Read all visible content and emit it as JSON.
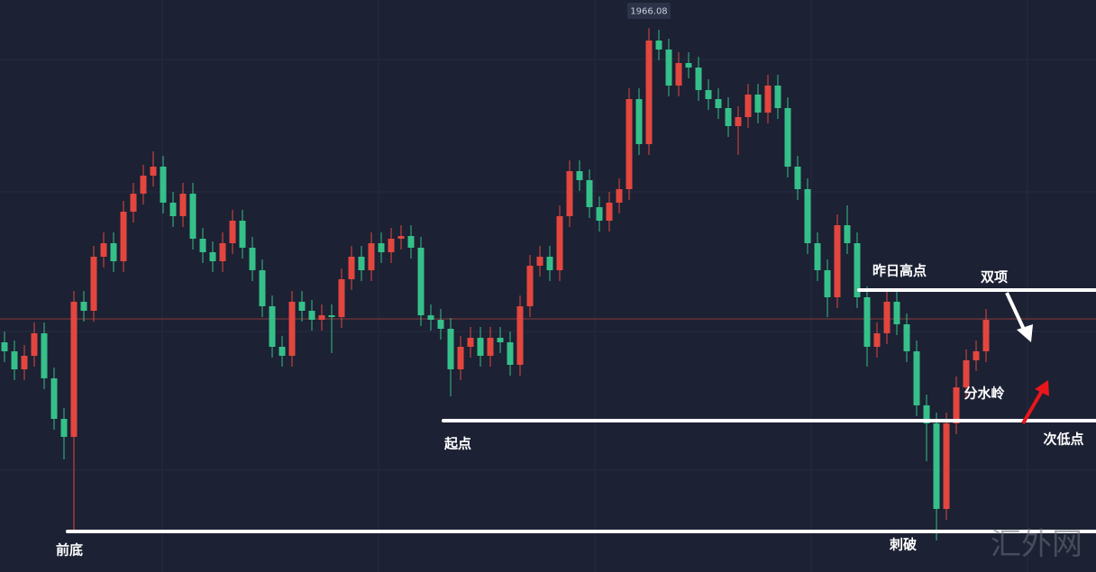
{
  "chart_data": {
    "type": "candlestick",
    "high_marker": 1966.08,
    "ylim": [
      1905.7,
      1969.2
    ],
    "up_color": "#e2463f",
    "down_color": "#35c08a",
    "price_line": 1933.8,
    "price_line_color": "#8a3a3a",
    "levels": [
      1937.0,
      1922.5,
      1910.2
    ],
    "level_color": "#ffffff",
    "annotations": [
      "昨日高点",
      "双项",
      "分水岭",
      "起点",
      "次低点",
      "前底",
      "刺破"
    ],
    "watermark": "汇外网",
    "values": [
      [
        1931.2,
        1932.4,
        1929.0,
        1930.2
      ],
      [
        1930.2,
        1931.4,
        1927.0,
        1928.2
      ],
      [
        1928.2,
        1930.9,
        1927.0,
        1929.7
      ],
      [
        1929.7,
        1933.4,
        1928.5,
        1932.2
      ],
      [
        1932.2,
        1933.4,
        1926.0,
        1927.2
      ],
      [
        1927.2,
        1928.4,
        1921.5,
        1922.7
      ],
      [
        1922.7,
        1923.9,
        1918.2,
        1920.7
      ],
      [
        1920.7,
        1936.9,
        1910.2,
        1935.7
      ],
      [
        1935.7,
        1936.9,
        1933.5,
        1934.7
      ],
      [
        1934.7,
        1941.9,
        1933.5,
        1940.7
      ],
      [
        1940.7,
        1943.4,
        1939.5,
        1942.2
      ],
      [
        1942.2,
        1943.4,
        1939.0,
        1940.2
      ],
      [
        1940.2,
        1946.9,
        1939.0,
        1945.7
      ],
      [
        1945.7,
        1948.9,
        1944.5,
        1947.7
      ],
      [
        1947.7,
        1950.9,
        1946.5,
        1949.7
      ],
      [
        1949.7,
        1952.4,
        1948.5,
        1950.7
      ],
      [
        1950.7,
        1951.9,
        1945.5,
        1946.7
      ],
      [
        1946.7,
        1947.9,
        1944.0,
        1945.2
      ],
      [
        1945.2,
        1948.9,
        1944.0,
        1947.7
      ],
      [
        1947.7,
        1948.9,
        1941.5,
        1942.7
      ],
      [
        1942.7,
        1943.9,
        1940.0,
        1941.2
      ],
      [
        1941.2,
        1942.4,
        1939.0,
        1940.2
      ],
      [
        1940.2,
        1943.4,
        1939.0,
        1942.2
      ],
      [
        1942.2,
        1945.9,
        1941.0,
        1944.7
      ],
      [
        1944.7,
        1945.9,
        1940.5,
        1941.7
      ],
      [
        1941.7,
        1942.9,
        1938.0,
        1939.2
      ],
      [
        1939.2,
        1940.4,
        1934.0,
        1935.2
      ],
      [
        1935.2,
        1936.4,
        1929.5,
        1930.7
      ],
      [
        1930.7,
        1931.9,
        1928.5,
        1929.7
      ],
      [
        1929.7,
        1936.9,
        1928.5,
        1935.7
      ],
      [
        1935.7,
        1936.9,
        1933.5,
        1934.7
      ],
      [
        1934.7,
        1935.9,
        1932.5,
        1933.7
      ],
      [
        1933.7,
        1935.4,
        1932.5,
        1934.2
      ],
      [
        1934.2,
        1935.4,
        1930.0,
        1934.0
      ],
      [
        1934.0,
        1939.4,
        1932.8,
        1938.2
      ],
      [
        1938.2,
        1941.9,
        1937.0,
        1940.7
      ],
      [
        1940.7,
        1941.9,
        1938.0,
        1939.2
      ],
      [
        1939.2,
        1943.4,
        1938.0,
        1942.2
      ],
      [
        1942.2,
        1943.4,
        1940.0,
        1941.2
      ],
      [
        1941.2,
        1943.9,
        1940.0,
        1942.7
      ],
      [
        1942.7,
        1944.2,
        1941.5,
        1943.0
      ],
      [
        1943.0,
        1944.2,
        1940.5,
        1941.7
      ],
      [
        1941.7,
        1942.9,
        1933.0,
        1934.2
      ],
      [
        1934.2,
        1935.4,
        1932.5,
        1933.7
      ],
      [
        1933.7,
        1934.9,
        1931.5,
        1932.7
      ],
      [
        1932.7,
        1933.9,
        1925.2,
        1928.2
      ],
      [
        1928.2,
        1931.9,
        1927.0,
        1930.7
      ],
      [
        1930.7,
        1932.9,
        1929.5,
        1931.7
      ],
      [
        1931.7,
        1932.9,
        1928.5,
        1929.7
      ],
      [
        1929.7,
        1932.9,
        1928.5,
        1931.7
      ],
      [
        1931.7,
        1932.9,
        1930.0,
        1931.2
      ],
      [
        1931.2,
        1932.4,
        1927.5,
        1928.7
      ],
      [
        1928.7,
        1936.4,
        1927.5,
        1935.2
      ],
      [
        1935.2,
        1940.9,
        1934.0,
        1939.7
      ],
      [
        1939.7,
        1941.9,
        1938.5,
        1940.7
      ],
      [
        1940.7,
        1941.9,
        1938.0,
        1939.2
      ],
      [
        1939.2,
        1946.4,
        1938.0,
        1945.2
      ],
      [
        1945.2,
        1951.4,
        1944.0,
        1950.2
      ],
      [
        1950.2,
        1951.4,
        1948.0,
        1949.2
      ],
      [
        1949.2,
        1950.4,
        1945.0,
        1946.2
      ],
      [
        1946.2,
        1947.4,
        1943.5,
        1944.7
      ],
      [
        1944.7,
        1947.9,
        1943.5,
        1946.7
      ],
      [
        1946.7,
        1949.4,
        1945.5,
        1948.2
      ],
      [
        1948.2,
        1959.4,
        1947.0,
        1958.2
      ],
      [
        1958.2,
        1959.4,
        1952.0,
        1953.2
      ],
      [
        1953.2,
        1966.08,
        1952.0,
        1964.7
      ],
      [
        1964.7,
        1965.9,
        1962.5,
        1963.7
      ],
      [
        1963.7,
        1964.9,
        1958.5,
        1959.7
      ],
      [
        1959.7,
        1963.4,
        1958.5,
        1962.2
      ],
      [
        1962.2,
        1963.4,
        1960.5,
        1961.7
      ],
      [
        1961.7,
        1962.9,
        1958.0,
        1959.2
      ],
      [
        1959.2,
        1960.4,
        1957.0,
        1958.2
      ],
      [
        1958.2,
        1959.4,
        1956.0,
        1957.2
      ],
      [
        1957.2,
        1958.4,
        1954.0,
        1955.2
      ],
      [
        1955.2,
        1957.4,
        1952.0,
        1956.2
      ],
      [
        1956.2,
        1959.9,
        1955.0,
        1958.7
      ],
      [
        1958.7,
        1959.9,
        1955.5,
        1956.7
      ],
      [
        1956.7,
        1960.9,
        1955.5,
        1959.7
      ],
      [
        1959.7,
        1960.9,
        1956.0,
        1957.2
      ],
      [
        1957.2,
        1958.4,
        1949.5,
        1950.7
      ],
      [
        1950.7,
        1951.9,
        1947.0,
        1948.2
      ],
      [
        1948.2,
        1949.4,
        1941.0,
        1942.2
      ],
      [
        1942.2,
        1943.4,
        1938.0,
        1939.2
      ],
      [
        1939.2,
        1940.4,
        1934.0,
        1936.2
      ],
      [
        1936.2,
        1945.4,
        1935.0,
        1944.2
      ],
      [
        1944.2,
        1946.4,
        1941.0,
        1942.2
      ],
      [
        1942.2,
        1943.4,
        1935.0,
        1936.2
      ],
      [
        1936.2,
        1937.4,
        1928.5,
        1930.7
      ],
      [
        1930.7,
        1933.4,
        1929.5,
        1932.2
      ],
      [
        1932.2,
        1936.9,
        1931.0,
        1935.7
      ],
      [
        1935.7,
        1936.9,
        1932.0,
        1933.2
      ],
      [
        1933.2,
        1934.4,
        1929.0,
        1930.2
      ],
      [
        1930.2,
        1931.4,
        1923.0,
        1924.2
      ],
      [
        1924.2,
        1925.4,
        1918.0,
        1922.2
      ],
      [
        1922.2,
        1923.4,
        1909.2,
        1912.7
      ],
      [
        1912.7,
        1923.4,
        1911.5,
        1922.2
      ],
      [
        1922.2,
        1927.4,
        1921.0,
        1926.2
      ],
      [
        1926.2,
        1930.4,
        1925.0,
        1929.2
      ],
      [
        1929.2,
        1931.4,
        1928.0,
        1930.2
      ],
      [
        1930.2,
        1934.9,
        1929.0,
        1933.7
      ]
    ]
  }
}
